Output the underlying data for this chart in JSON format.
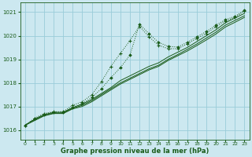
{
  "xlabel": "Graphe pression niveau de la mer (hPa)",
  "bg_color": "#cce8f0",
  "grid_color": "#99ccd9",
  "line_color": "#1a5c1a",
  "text_color": "#1a5c1a",
  "xlim": [
    -0.5,
    23.5
  ],
  "ylim": [
    1015.6,
    1021.4
  ],
  "yticks": [
    1016,
    1017,
    1018,
    1019,
    1020,
    1021
  ],
  "xticks": [
    0,
    1,
    2,
    3,
    4,
    5,
    6,
    7,
    8,
    9,
    10,
    11,
    12,
    13,
    14,
    15,
    16,
    17,
    18,
    19,
    20,
    21,
    22,
    23
  ],
  "line_base1": [
    1016.2,
    1016.45,
    1016.65,
    1016.75,
    1016.75,
    1016.95,
    1017.1,
    1017.3,
    1017.55,
    1017.8,
    1018.1,
    1018.3,
    1018.5,
    1018.7,
    1018.85,
    1019.1,
    1019.3,
    1019.5,
    1019.75,
    1020.0,
    1020.25,
    1020.55,
    1020.75,
    1020.95
  ],
  "line_base2": [
    1016.2,
    1016.43,
    1016.62,
    1016.72,
    1016.72,
    1016.92,
    1017.05,
    1017.25,
    1017.5,
    1017.75,
    1018.0,
    1018.2,
    1018.4,
    1018.6,
    1018.75,
    1019.0,
    1019.2,
    1019.42,
    1019.65,
    1019.9,
    1020.15,
    1020.45,
    1020.65,
    1020.85
  ],
  "line_base3": [
    1016.2,
    1016.4,
    1016.6,
    1016.7,
    1016.7,
    1016.9,
    1017.0,
    1017.2,
    1017.45,
    1017.7,
    1017.95,
    1018.15,
    1018.35,
    1018.55,
    1018.7,
    1018.95,
    1019.15,
    1019.35,
    1019.58,
    1019.82,
    1020.07,
    1020.37,
    1020.57,
    1020.78
  ],
  "line_cross": [
    1016.2,
    1016.5,
    1016.7,
    1016.78,
    1016.78,
    1017.05,
    1017.2,
    1017.5,
    1018.05,
    1018.7,
    1019.25,
    1019.8,
    1020.4,
    1019.95,
    1019.6,
    1019.45,
    1019.45,
    1019.65,
    1019.88,
    1020.1,
    1020.38,
    1020.62,
    1020.78,
    1021.05
  ],
  "line_diamond": [
    1016.2,
    1016.48,
    1016.67,
    1016.76,
    1016.76,
    1016.97,
    1017.12,
    1017.38,
    1017.75,
    1018.22,
    1018.65,
    1019.18,
    1020.5,
    1020.08,
    1019.72,
    1019.55,
    1019.52,
    1019.72,
    1019.95,
    1020.18,
    1020.45,
    1020.68,
    1020.82,
    1021.08
  ]
}
